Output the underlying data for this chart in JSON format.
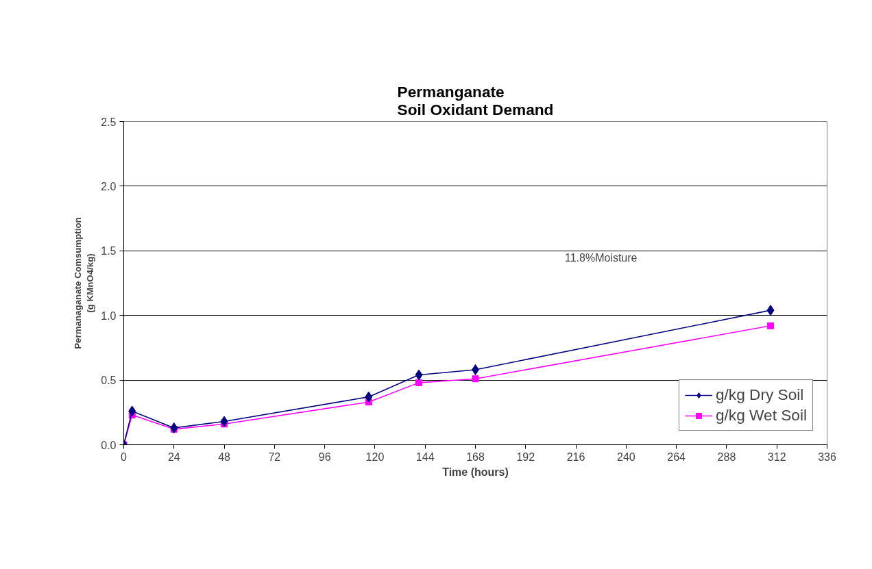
{
  "chart_data": {
    "type": "line",
    "title": "Permanganate\nSoil Oxidant Demand",
    "xlabel": "Time (hours)",
    "ylabel": "Permanaganate Comsumption\n(g KMnO4/kg)",
    "x": [
      0,
      4,
      24,
      48,
      117,
      141,
      168,
      309
    ],
    "series": [
      {
        "name": "g/kg Dry Soil",
        "color": "#000080",
        "marker": "diamond",
        "values": [
          0,
          0.26,
          0.13,
          0.18,
          0.37,
          0.54,
          0.58,
          1.04
        ]
      },
      {
        "name": "g/kg Wet Soil",
        "color": "#ff00ff",
        "marker": "square",
        "values": [
          0,
          0.23,
          0.12,
          0.16,
          0.33,
          0.48,
          0.51,
          0.92
        ]
      }
    ],
    "xlim": [
      0,
      336
    ],
    "xticks": [
      0,
      24,
      48,
      72,
      96,
      120,
      144,
      168,
      192,
      216,
      240,
      264,
      288,
      312,
      336
    ],
    "ylim": [
      0,
      2.5
    ],
    "yticks": [
      {
        "value": 0,
        "label": "0.0"
      },
      {
        "value": 0.5,
        "label": "0.5"
      },
      {
        "value": 1,
        "label": "1.0"
      },
      {
        "value": 1.5,
        "label": "1.5"
      },
      {
        "value": 2,
        "label": "2.0"
      },
      {
        "value": 2.5,
        "label": "2.5"
      }
    ],
    "grid": "y",
    "legend": "bottom right",
    "annotations": [
      "11.8%Moisture"
    ]
  }
}
